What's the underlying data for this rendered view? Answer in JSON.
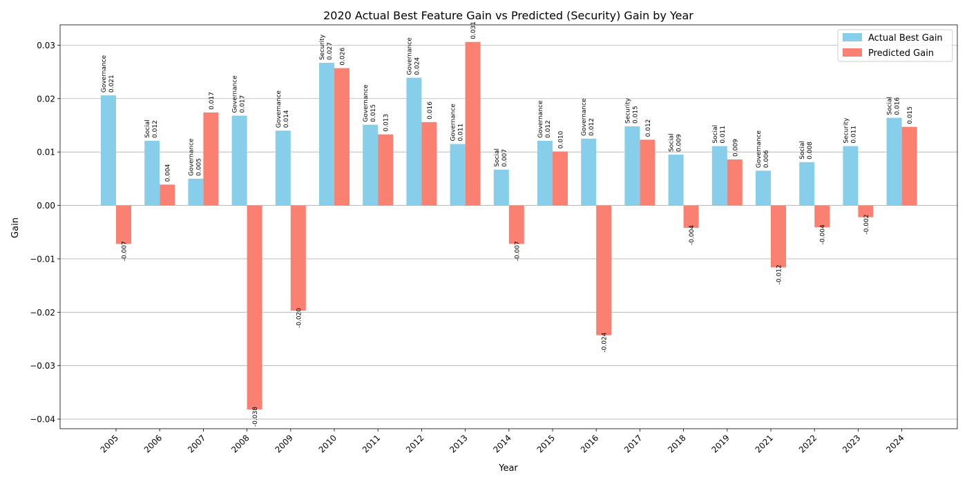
{
  "chart_data": {
    "type": "bar",
    "title": "2020 Actual Best Feature Gain vs Predicted (Security) Gain by Year",
    "xlabel": "Year",
    "ylabel": "Gain",
    "ylim": [
      -0.0418,
      0.0338
    ],
    "yticks": [
      -0.04,
      -0.03,
      -0.02,
      -0.01,
      0.0,
      0.01,
      0.02,
      0.03
    ],
    "ytick_labels": [
      "−0.04",
      "−0.03",
      "−0.02",
      "−0.01",
      "0.00",
      "0.01",
      "0.02",
      "0.03"
    ],
    "grid": "y",
    "legend_position": "top-right",
    "categories": [
      "2005",
      "2006",
      "2007",
      "2008",
      "2009",
      "2010",
      "2011",
      "2012",
      "2013",
      "2014",
      "2015",
      "2016",
      "2017",
      "2018",
      "2019",
      "2021",
      "2022",
      "2023",
      "2024"
    ],
    "series": [
      {
        "name": "Actual Best Gain",
        "color": "#87CEEB",
        "values": [
          0.0206,
          0.0121,
          0.005,
          0.0168,
          0.014,
          0.0267,
          0.0151,
          0.0239,
          0.0115,
          0.0067,
          0.0121,
          0.0125,
          0.0148,
          0.0095,
          0.0111,
          0.0065,
          0.0081,
          0.0111,
          0.0164
        ],
        "value_labels": [
          "0.021",
          "0.012",
          "0.005",
          "0.017",
          "0.014",
          "0.027",
          "0.015",
          "0.024",
          "0.011",
          "0.007",
          "0.012",
          "0.012",
          "0.015",
          "0.009",
          "0.011",
          "0.006",
          "0.008",
          "0.011",
          "0.016"
        ],
        "feature_labels": [
          "Governance",
          "Social",
          "Governance",
          "Governance",
          "Governance",
          "Security",
          "Governance",
          "Governance",
          "Governance",
          "Social",
          "Governance",
          "Governance",
          "Security",
          "Social",
          "Social",
          "Governance",
          "Social",
          "Security",
          "Social"
        ]
      },
      {
        "name": "Predicted Gain",
        "color": "#FA8072",
        "values": [
          -0.0072,
          0.0039,
          0.0174,
          -0.0382,
          -0.0197,
          0.0257,
          0.0133,
          0.0156,
          0.0306,
          -0.0072,
          0.0101,
          -0.0243,
          0.0123,
          -0.0042,
          0.0086,
          -0.0116,
          -0.0041,
          -0.0022,
          0.0147
        ],
        "value_labels": [
          "-0.007",
          "0.004",
          "0.017",
          "-0.038",
          "-0.020",
          "0.026",
          "0.013",
          "0.016",
          "0.031",
          "-0.007",
          "0.010",
          "-0.024",
          "0.012",
          "-0.004",
          "0.009",
          "-0.012",
          "-0.004",
          "-0.002",
          "0.015"
        ]
      }
    ]
  }
}
